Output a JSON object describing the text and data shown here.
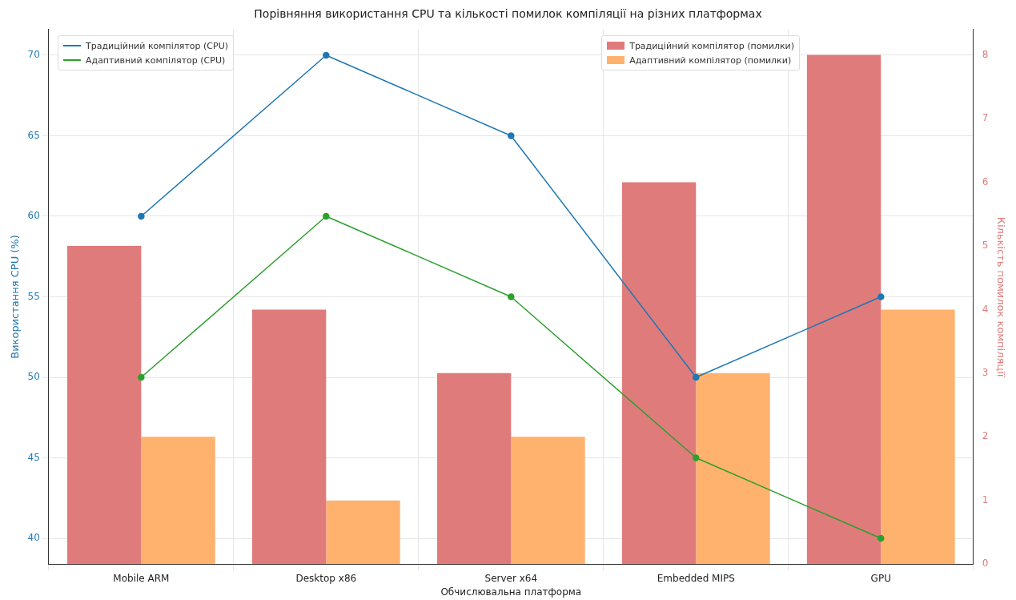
{
  "chart_data": {
    "type": "bar",
    "title": "Порівняння використання CPU та кількості помилок компіляції на різних платформах",
    "xlabel": "Обчислювальна платформа",
    "ylabel": "Використання CPU (%)",
    "y2label": "Кількість помилок компіляції",
    "categories": [
      "Mobile ARM",
      "Desktop x86",
      "Server x64",
      "Embedded MIPS",
      "GPU"
    ],
    "series": [
      {
        "name": "Традиційний компілятор (CPU)",
        "type": "line",
        "color": "#1f77b4",
        "values": [
          60,
          70,
          65,
          50,
          55
        ]
      },
      {
        "name": "Адаптивний компілятор (CPU)",
        "type": "line",
        "color": "#2ca02c",
        "values": [
          50,
          60,
          55,
          45,
          40
        ]
      },
      {
        "name": "Традиційний компілятор (помилки)",
        "axis": "y2",
        "color": "#e07b7c",
        "values": [
          5,
          4,
          3,
          6,
          8
        ]
      },
      {
        "name": "Адаптивний компілятор (помилки)",
        "axis": "y2",
        "color": "#ffb26e",
        "values": [
          2,
          1,
          2,
          3,
          4
        ]
      }
    ],
    "ylim": [
      38.4,
      71.6
    ],
    "yticks": [
      40,
      45,
      50,
      55,
      60,
      65,
      70
    ],
    "y2lim": [
      0,
      8.4
    ],
    "y2ticks": [
      0,
      1,
      2,
      3,
      4,
      5,
      6,
      7,
      8
    ],
    "grid": true,
    "legend": "top",
    "marker": "circle"
  }
}
